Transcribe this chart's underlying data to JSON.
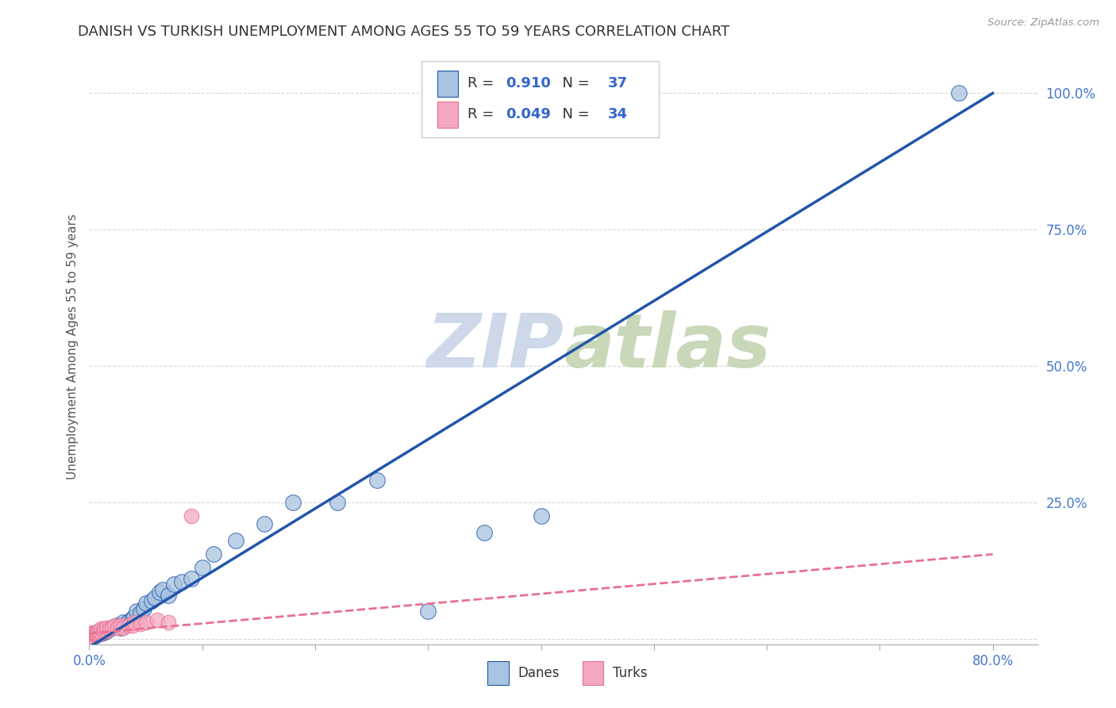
{
  "title": "DANISH VS TURKISH UNEMPLOYMENT AMONG AGES 55 TO 59 YEARS CORRELATION CHART",
  "source": "Source: ZipAtlas.com",
  "ylabel": "Unemployment Among Ages 55 to 59 years",
  "xlim": [
    0.0,
    0.84
  ],
  "ylim": [
    -0.01,
    1.08
  ],
  "xticks": [
    0.0,
    0.1,
    0.2,
    0.3,
    0.4,
    0.5,
    0.6,
    0.7,
    0.8
  ],
  "xtick_labels": [
    "0.0%",
    "",
    "",
    "",
    "",
    "",
    "",
    "",
    "80.0%"
  ],
  "ytick_labels": [
    "",
    "25.0%",
    "50.0%",
    "75.0%",
    "100.0%"
  ],
  "yticks": [
    0.0,
    0.25,
    0.5,
    0.75,
    1.0
  ],
  "danish_R": 0.91,
  "danish_N": 37,
  "turkish_R": 0.049,
  "turkish_N": 34,
  "dane_color": "#a8c4e0",
  "turk_color": "#f4a8c0",
  "dane_line_color": "#2255aa",
  "turk_line_color": "#e87090",
  "background_color": "#ffffff",
  "watermark_color": "#cdd8e8",
  "title_fontsize": 13,
  "axis_label_fontsize": 11,
  "tick_fontsize": 12,
  "dane_x": [
    0.005,
    0.01,
    0.012,
    0.015,
    0.018,
    0.02,
    0.022,
    0.025,
    0.028,
    0.03,
    0.033,
    0.035,
    0.038,
    0.04,
    0.042,
    0.045,
    0.048,
    0.05,
    0.055,
    0.058,
    0.062,
    0.065,
    0.07,
    0.075,
    0.082,
    0.09,
    0.1,
    0.11,
    0.13,
    0.155,
    0.18,
    0.22,
    0.255,
    0.3,
    0.35,
    0.4,
    0.77
  ],
  "dane_y": [
    0.005,
    0.01,
    0.012,
    0.015,
    0.018,
    0.02,
    0.022,
    0.025,
    0.02,
    0.03,
    0.028,
    0.032,
    0.038,
    0.04,
    0.05,
    0.048,
    0.055,
    0.065,
    0.07,
    0.075,
    0.085,
    0.09,
    0.08,
    0.1,
    0.105,
    0.11,
    0.13,
    0.155,
    0.18,
    0.21,
    0.25,
    0.25,
    0.29,
    0.05,
    0.195,
    0.225,
    1.0
  ],
  "turk_x": [
    0.0,
    0.0,
    0.0,
    0.002,
    0.002,
    0.003,
    0.003,
    0.005,
    0.005,
    0.006,
    0.007,
    0.008,
    0.008,
    0.01,
    0.01,
    0.01,
    0.012,
    0.013,
    0.015,
    0.015,
    0.018,
    0.02,
    0.022,
    0.025,
    0.028,
    0.03,
    0.035,
    0.038,
    0.04,
    0.045,
    0.05,
    0.06,
    0.07,
    0.09
  ],
  "turk_y": [
    0.005,
    0.008,
    0.01,
    0.005,
    0.01,
    0.008,
    0.012,
    0.008,
    0.012,
    0.01,
    0.012,
    0.01,
    0.015,
    0.01,
    0.012,
    0.018,
    0.015,
    0.018,
    0.015,
    0.02,
    0.018,
    0.02,
    0.025,
    0.02,
    0.025,
    0.02,
    0.025,
    0.025,
    0.03,
    0.028,
    0.03,
    0.035,
    0.03,
    0.225
  ],
  "dane_line_x": [
    0.0,
    0.8
  ],
  "dane_line_y": [
    -0.015,
    1.0
  ],
  "turk_line_x": [
    0.0,
    0.8
  ],
  "turk_line_y": [
    0.01,
    0.155
  ]
}
